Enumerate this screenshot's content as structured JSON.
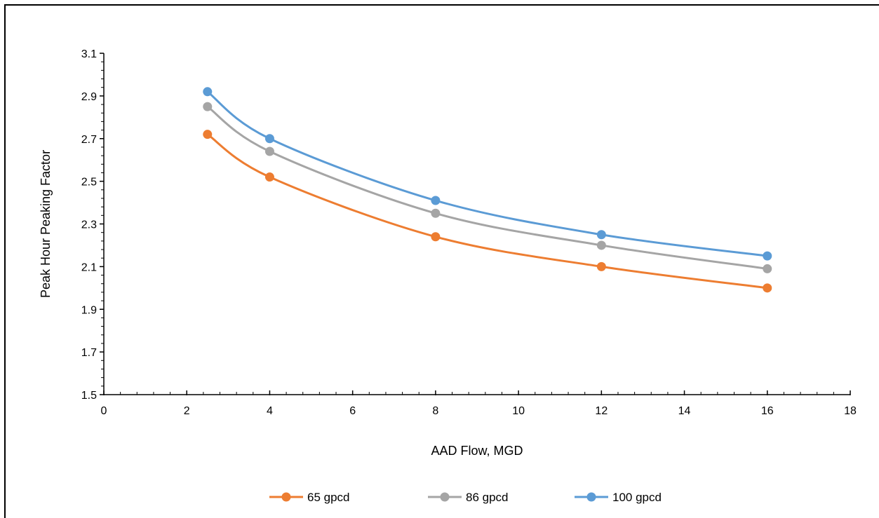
{
  "chart_data": {
    "type": "line",
    "title": "",
    "xlabel": "AAD Flow, MGD",
    "ylabel": "Peak Hour Peaking Factor",
    "xlim": [
      0,
      18
    ],
    "ylim": [
      1.5,
      3.1
    ],
    "xticks": [
      "0",
      "2",
      "4",
      "6",
      "8",
      "10",
      "12",
      "14",
      "16",
      "18"
    ],
    "yticks": [
      "1.5",
      "1.7",
      "1.9",
      "2.1",
      "2.3",
      "2.5",
      "2.7",
      "2.9",
      "3.1"
    ],
    "grid": false,
    "legend_position": "bottom",
    "smooth": true,
    "series": [
      {
        "name": "65 gpcd",
        "color": "#ED7D31",
        "x": [
          2.5,
          4,
          8,
          12,
          16
        ],
        "y": [
          2.72,
          2.52,
          2.24,
          2.1,
          2.0
        ]
      },
      {
        "name": "86 gpcd",
        "color": "#A5A5A5",
        "x": [
          2.5,
          4,
          8,
          12,
          16
        ],
        "y": [
          2.85,
          2.64,
          2.35,
          2.2,
          2.09
        ]
      },
      {
        "name": "100 gpcd",
        "color": "#5B9BD5",
        "x": [
          2.5,
          4,
          8,
          12,
          16
        ],
        "y": [
          2.92,
          2.7,
          2.41,
          2.25,
          2.15
        ]
      }
    ]
  }
}
